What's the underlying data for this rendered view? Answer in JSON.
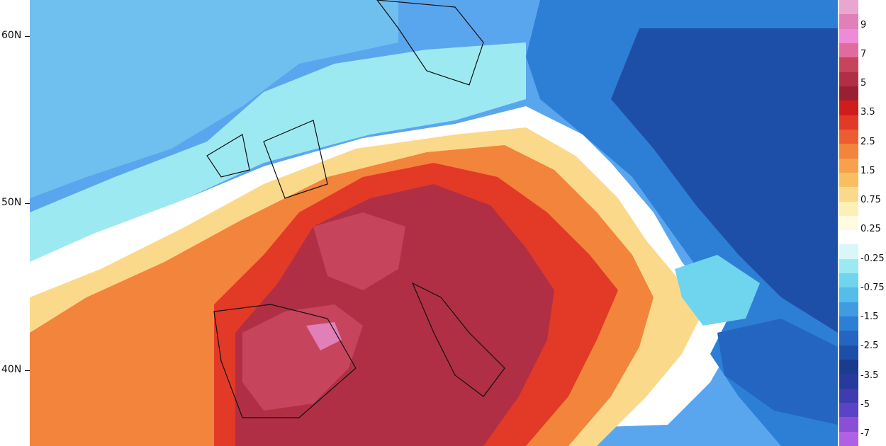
{
  "map": {
    "latitude_labels": [
      "60N",
      "50N",
      "40N"
    ],
    "colors": {
      "ocean_cool": "#5aa6ee",
      "neutral": "#ffffff",
      "warm_light": "#f7c87a",
      "warm_mid": "#ef8a47",
      "warm_strong": "#d9452f",
      "warm_peak": "#9e2a44",
      "cold_deep": "#1f4f9c"
    }
  },
  "legend": {
    "labels": [
      "9",
      "7",
      "5",
      "3.5",
      "2.5",
      "1.5",
      "0.75",
      "0.25",
      "-0.25",
      "-0.75",
      "-1.5",
      "-2.5",
      "-3.5",
      "-5",
      "-7"
    ],
    "swatch_colors": [
      "#e9a6cf",
      "#e07fb8",
      "#ef8ad6",
      "#e26b9e",
      "#c6455d",
      "#b12f45",
      "#9b1f33",
      "#d11c1c",
      "#e23a27",
      "#ee5d31",
      "#f3843b",
      "#f7a24b",
      "#f8bf62",
      "#fbd98b",
      "#fdf0b6",
      "#fffbe0",
      "#ffffff",
      "#d9f7f9",
      "#9de9f1",
      "#6fd5ee",
      "#54bde9",
      "#3f9ce0",
      "#2d7fd6",
      "#2465c2",
      "#1e4fa8",
      "#1a3c8f",
      "#283a9e",
      "#3f3cb0",
      "#5a43c6",
      "#8a4fd6",
      "#b060e4"
    ]
  }
}
